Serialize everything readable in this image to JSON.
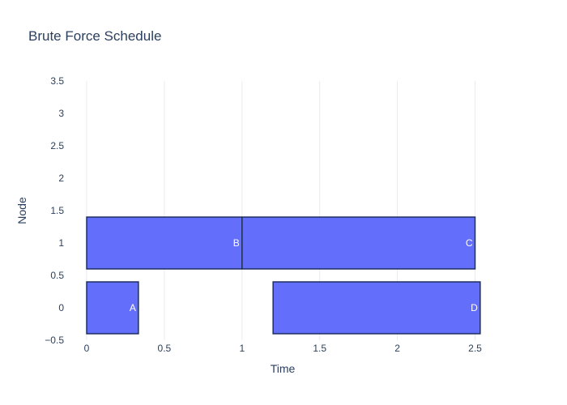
{
  "chart_data": {
    "type": "bar",
    "orientation": "horizontal-timeline",
    "title": "Brute Force Schedule",
    "xlabel": "Time",
    "ylabel": "Node",
    "xlim": [
      0,
      2.5
    ],
    "ylim": [
      -0.5,
      3.5
    ],
    "x_ticks": [
      "0",
      "0.5",
      "1",
      "1.5",
      "2",
      "2.5"
    ],
    "y_ticks": [
      "−0.5",
      "0",
      "0.5",
      "1",
      "1.5",
      "2",
      "2.5",
      "3",
      "3.5"
    ],
    "bar_color": "#636efa",
    "bars": [
      {
        "label": "A",
        "node": 0,
        "start": 0,
        "end": 0.333
      },
      {
        "label": "B",
        "node": 1,
        "start": 0,
        "end": 1.0
      },
      {
        "label": "C",
        "node": 1,
        "start": 1.0,
        "end": 2.5
      },
      {
        "label": "D",
        "node": 0,
        "start": 1.2,
        "end": 2.533
      }
    ],
    "grid": "vertical"
  }
}
